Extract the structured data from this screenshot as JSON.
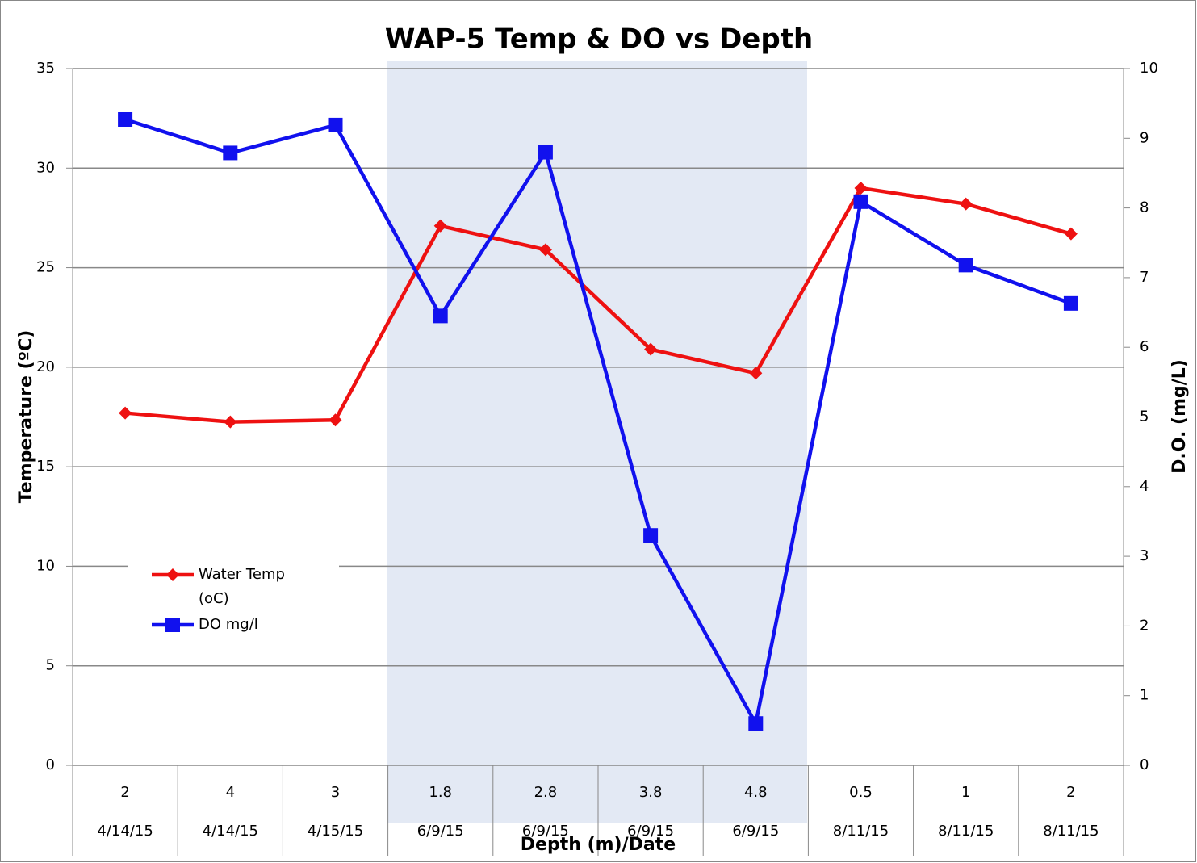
{
  "chart_data": {
    "type": "line",
    "title": "WAP-5 Temp & DO vs Depth",
    "x_label": "Depth (m)/Date",
    "y_label": "Temperature (ºC)",
    "y2_label": "D.O. (mg/L)",
    "categories": [
      "2",
      "4",
      "3",
      "1.8",
      "2.8",
      "3.8",
      "4.8",
      "0.5",
      "1",
      "2"
    ],
    "dates": [
      "4/14/15",
      "4/14/15",
      "4/15/15",
      "6/9/15",
      "6/9/15",
      "6/9/15",
      "6/9/15",
      "8/11/15",
      "8/11/15",
      "8/11/15"
    ],
    "series": [
      {
        "name": "Water Temp (oC)",
        "color": "#ee1111",
        "marker": "diamond",
        "values": [
          17.7,
          17.25,
          17.35,
          27.1,
          25.9,
          20.9,
          19.7,
          29.0,
          28.2,
          26.7
        ]
      },
      {
        "name": "DO mg/l",
        "color": "#1111ee",
        "marker": "square",
        "axis": "y2",
        "values": [
          9.27,
          8.79,
          9.19,
          6.45,
          8.8,
          3.3,
          0.6,
          8.09,
          7.18,
          6.63
        ]
      }
    ],
    "ylim": [
      0,
      35
    ],
    "yticks": [
      0,
      5,
      10,
      15,
      20,
      25,
      30,
      35
    ],
    "y2lim": [
      0,
      10
    ],
    "y2ticks": [
      0,
      1,
      2,
      3,
      4,
      5,
      6,
      7,
      8,
      9,
      10
    ],
    "grid": true,
    "legend": "left"
  }
}
